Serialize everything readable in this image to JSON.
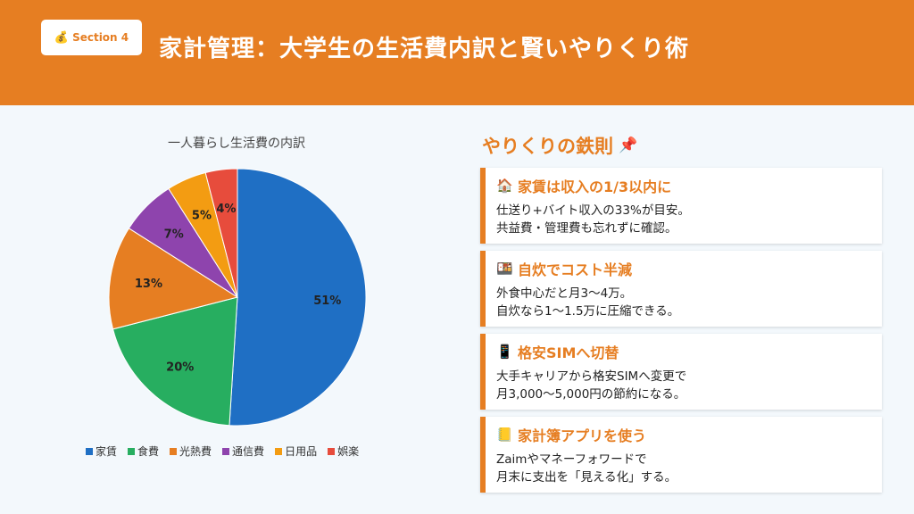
{
  "header": {
    "badge_icon": "money-bag-icon",
    "badge_label": "Section 4",
    "title": "家計管理：大学生の生活費内訳と賢いやりくり術",
    "color": "#e67e22"
  },
  "chart_data": {
    "type": "pie",
    "title": "一人暮らし生活費の内訳",
    "categories": [
      "家賃",
      "食費",
      "光熱費",
      "通信費",
      "日用品",
      "娯楽"
    ],
    "values": [
      51,
      20,
      13,
      7,
      5,
      4
    ],
    "labels": [
      "51%",
      "20%",
      "13%",
      "7%",
      "5%",
      "4%"
    ],
    "colors": [
      "#1f6fc4",
      "#27ae60",
      "#e67e22",
      "#8e44ad",
      "#f39c12",
      "#e74c3c"
    ],
    "legend_position": "bottom"
  },
  "tips": {
    "title": "やりくりの鉄則",
    "title_icon": "pushpin-icon",
    "cards": [
      {
        "icon": "house-icon",
        "glyph": "🏠",
        "heading": "家賃は収入の1/3以内に",
        "lines": [
          "仕送り+バイト収入の33%が目安。",
          "共益費・管理費も忘れずに確認。"
        ]
      },
      {
        "icon": "bento-icon",
        "glyph": "🍱",
        "heading": "自炊でコスト半減",
        "lines": [
          "外食中心だと月3〜4万。",
          "自炊なら1〜1.5万に圧縮できる。"
        ]
      },
      {
        "icon": "smartphone-icon",
        "glyph": "📱",
        "heading": "格安SIMへ切替",
        "lines": [
          "大手キャリアから格安SIMへ変更で",
          "月3,000〜5,000円の節約になる。"
        ]
      },
      {
        "icon": "notebook-icon",
        "glyph": "📒",
        "heading": "家計簿アプリを使う",
        "lines": [
          "Zaimやマネーフォワードで",
          "月末に支出を「見える化」する。"
        ]
      }
    ]
  }
}
